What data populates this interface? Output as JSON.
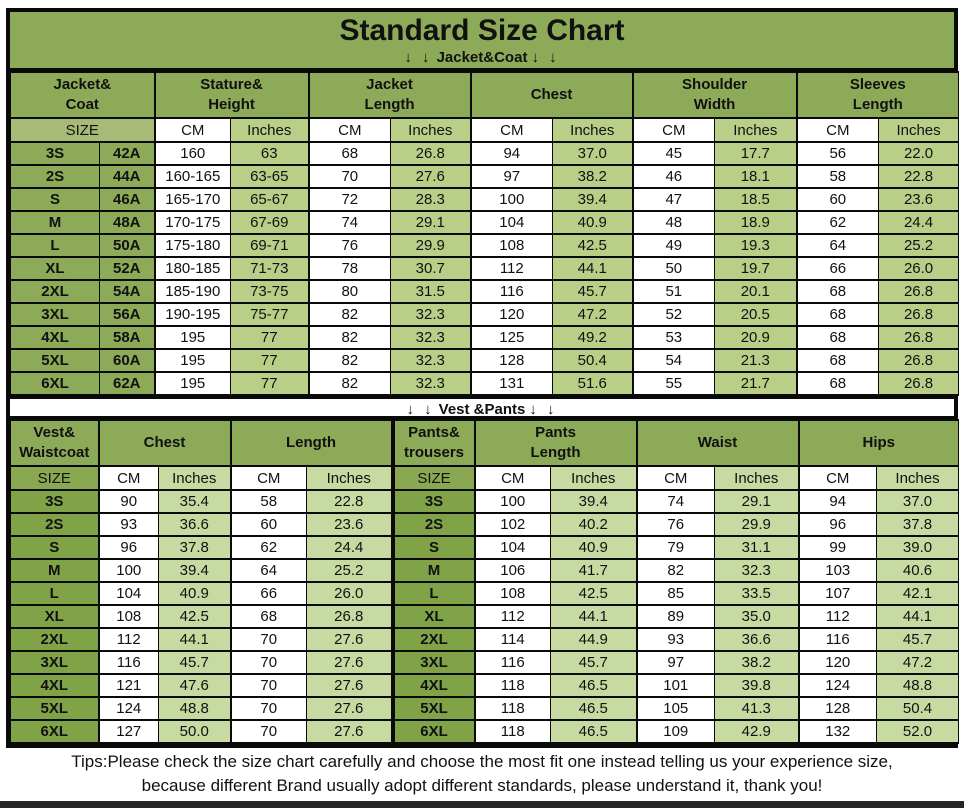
{
  "title": "Standard Size Chart",
  "banner_arrows": "↓ ↓",
  "colors": {
    "header_green": "#8caa58",
    "label_green_dark": "#81a348",
    "light_green_jacket": "#b9cf88",
    "light_green_vest": "#c7daa1",
    "border_black": "#0a0a0a"
  },
  "tips": {
    "line1": "Tips:Please check the size chart carefully and choose the most fit one instead telling us your experience size,",
    "line2": "because different Brand usually adopt different standards, please understand it, thank you!"
  },
  "chart_data": [
    {
      "type": "table",
      "title": "Jacket&Coat",
      "column_groups": [
        {
          "label_lines": [
            "Jacket&",
            "Coat"
          ],
          "span": 2
        },
        {
          "label_lines": [
            "Stature&",
            "Height"
          ],
          "span": 2
        },
        {
          "label_lines": [
            "Jacket",
            "Length"
          ],
          "span": 2
        },
        {
          "label_lines": [
            "Chest"
          ],
          "span": 2
        },
        {
          "label_lines": [
            "Shoulder",
            "Width"
          ],
          "span": 2
        },
        {
          "label_lines": [
            "Sleeves",
            "Length"
          ],
          "span": 2
        }
      ],
      "subheader": [
        "SIZE",
        "CM",
        "Inches",
        "CM",
        "Inches",
        "CM",
        "Inches",
        "CM",
        "Inches",
        "CM",
        "Inches"
      ],
      "rows": [
        [
          "3S",
          "42A",
          "160",
          "63",
          "68",
          "26.8",
          "94",
          "37.0",
          "45",
          "17.7",
          "56",
          "22.0"
        ],
        [
          "2S",
          "44A",
          "160-165",
          "63-65",
          "70",
          "27.6",
          "97",
          "38.2",
          "46",
          "18.1",
          "58",
          "22.8"
        ],
        [
          "S",
          "46A",
          "165-170",
          "65-67",
          "72",
          "28.3",
          "100",
          "39.4",
          "47",
          "18.5",
          "60",
          "23.6"
        ],
        [
          "M",
          "48A",
          "170-175",
          "67-69",
          "74",
          "29.1",
          "104",
          "40.9",
          "48",
          "18.9",
          "62",
          "24.4"
        ],
        [
          "L",
          "50A",
          "175-180",
          "69-71",
          "76",
          "29.9",
          "108",
          "42.5",
          "49",
          "19.3",
          "64",
          "25.2"
        ],
        [
          "XL",
          "52A",
          "180-185",
          "71-73",
          "78",
          "30.7",
          "112",
          "44.1",
          "50",
          "19.7",
          "66",
          "26.0"
        ],
        [
          "2XL",
          "54A",
          "185-190",
          "73-75",
          "80",
          "31.5",
          "116",
          "45.7",
          "51",
          "20.1",
          "68",
          "26.8"
        ],
        [
          "3XL",
          "56A",
          "190-195",
          "75-77",
          "82",
          "32.3",
          "120",
          "47.2",
          "52",
          "20.5",
          "68",
          "26.8"
        ],
        [
          "4XL",
          "58A",
          "195",
          "77",
          "82",
          "32.3",
          "125",
          "49.2",
          "53",
          "20.9",
          "68",
          "26.8"
        ],
        [
          "5XL",
          "60A",
          "195",
          "77",
          "82",
          "32.3",
          "128",
          "50.4",
          "54",
          "21.3",
          "68",
          "26.8"
        ],
        [
          "6XL",
          "62A",
          "195",
          "77",
          "82",
          "32.3",
          "131",
          "51.6",
          "55",
          "21.7",
          "68",
          "26.8"
        ]
      ]
    },
    {
      "type": "table",
      "title": "Vest &Pants",
      "column_groups": [
        {
          "label_lines": [
            "Vest&",
            "Waistcoat"
          ],
          "span": 1
        },
        {
          "label_lines": [
            "Chest"
          ],
          "span": 2
        },
        {
          "label_lines": [
            "Length"
          ],
          "span": 2
        },
        {
          "label_lines": [
            "Pants&",
            "trousers"
          ],
          "span": 1
        },
        {
          "label_lines": [
            "Pants",
            "Length"
          ],
          "span": 2
        },
        {
          "label_lines": [
            "Waist"
          ],
          "span": 2
        },
        {
          "label_lines": [
            "Hips"
          ],
          "span": 2
        }
      ],
      "subheader": [
        "SIZE",
        "CM",
        "Inches",
        "CM",
        "Inches",
        "SIZE",
        "CM",
        "Inches",
        "CM",
        "Inches",
        "CM",
        "Inches"
      ],
      "rows": [
        [
          "3S",
          "90",
          "35.4",
          "58",
          "22.8",
          "3S",
          "100",
          "39.4",
          "74",
          "29.1",
          "94",
          "37.0"
        ],
        [
          "2S",
          "93",
          "36.6",
          "60",
          "23.6",
          "2S",
          "102",
          "40.2",
          "76",
          "29.9",
          "96",
          "37.8"
        ],
        [
          "S",
          "96",
          "37.8",
          "62",
          "24.4",
          "S",
          "104",
          "40.9",
          "79",
          "31.1",
          "99",
          "39.0"
        ],
        [
          "M",
          "100",
          "39.4",
          "64",
          "25.2",
          "M",
          "106",
          "41.7",
          "82",
          "32.3",
          "103",
          "40.6"
        ],
        [
          "L",
          "104",
          "40.9",
          "66",
          "26.0",
          "L",
          "108",
          "42.5",
          "85",
          "33.5",
          "107",
          "42.1"
        ],
        [
          "XL",
          "108",
          "42.5",
          "68",
          "26.8",
          "XL",
          "112",
          "44.1",
          "89",
          "35.0",
          "112",
          "44.1"
        ],
        [
          "2XL",
          "112",
          "44.1",
          "70",
          "27.6",
          "2XL",
          "114",
          "44.9",
          "93",
          "36.6",
          "116",
          "45.7"
        ],
        [
          "3XL",
          "116",
          "45.7",
          "70",
          "27.6",
          "3XL",
          "116",
          "45.7",
          "97",
          "38.2",
          "120",
          "47.2"
        ],
        [
          "4XL",
          "121",
          "47.6",
          "70",
          "27.6",
          "4XL",
          "118",
          "46.5",
          "101",
          "39.8",
          "124",
          "48.8"
        ],
        [
          "5XL",
          "124",
          "48.8",
          "70",
          "27.6",
          "5XL",
          "118",
          "46.5",
          "105",
          "41.3",
          "128",
          "50.4"
        ],
        [
          "6XL",
          "127",
          "50.0",
          "70",
          "27.6",
          "6XL",
          "118",
          "46.5",
          "109",
          "42.9",
          "132",
          "52.0"
        ]
      ]
    }
  ]
}
